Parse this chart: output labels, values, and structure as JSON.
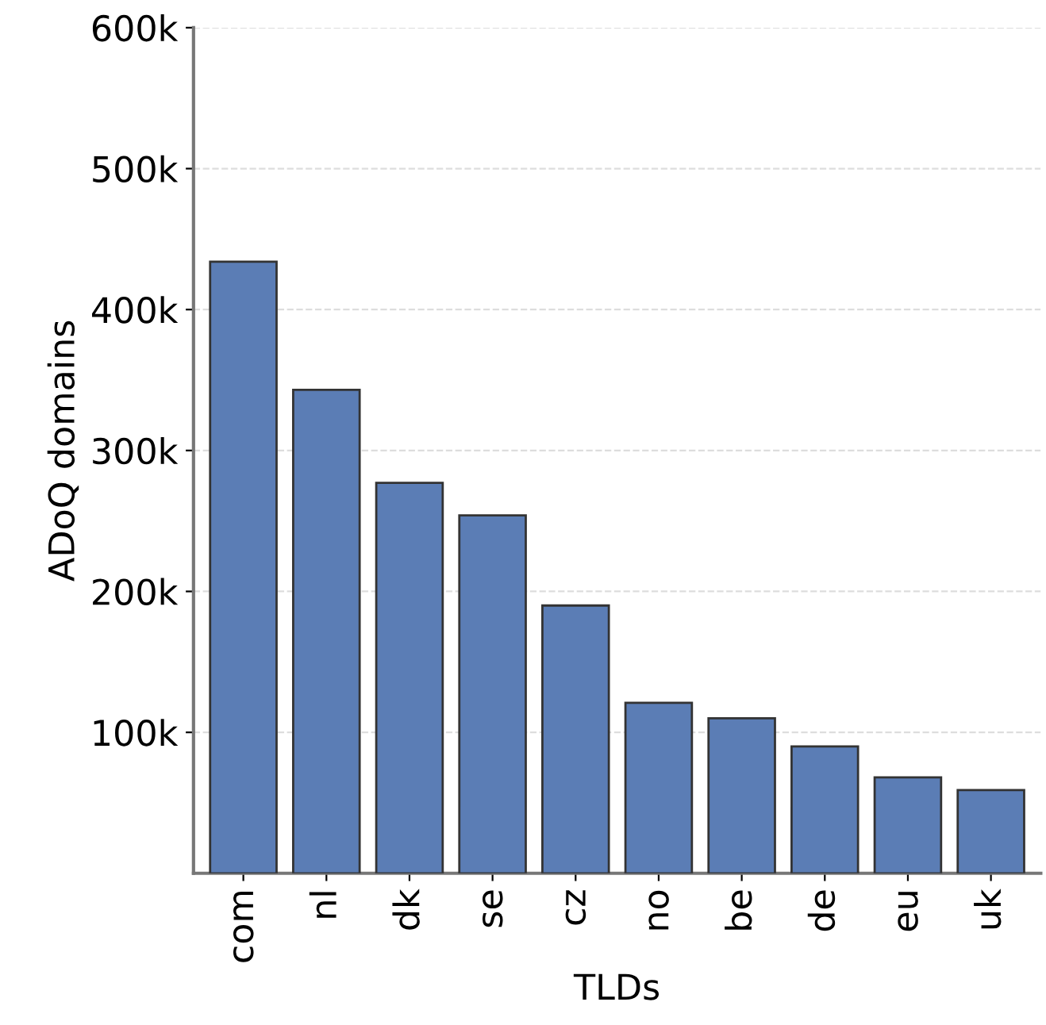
{
  "chart_data": {
    "type": "bar",
    "xlabel": "TLDs",
    "ylabel": "ADoQ domains",
    "categories": [
      "com",
      "nl",
      "dk",
      "se",
      "cz",
      "no",
      "be",
      "de",
      "eu",
      "uk"
    ],
    "values": [
      434000,
      343000,
      277000,
      254000,
      190000,
      121000,
      110000,
      90000,
      68000,
      59000
    ],
    "color": "#5b7db5",
    "ylim": [
      0,
      600000
    ],
    "yticks": [
      {
        "value": 100000,
        "label": "100k"
      },
      {
        "value": 200000,
        "label": "200k"
      },
      {
        "value": 300000,
        "label": "300k"
      },
      {
        "value": 400000,
        "label": "400k"
      },
      {
        "value": 500000,
        "label": "500k"
      },
      {
        "value": 600000,
        "label": "600k"
      }
    ],
    "grid": "y"
  }
}
